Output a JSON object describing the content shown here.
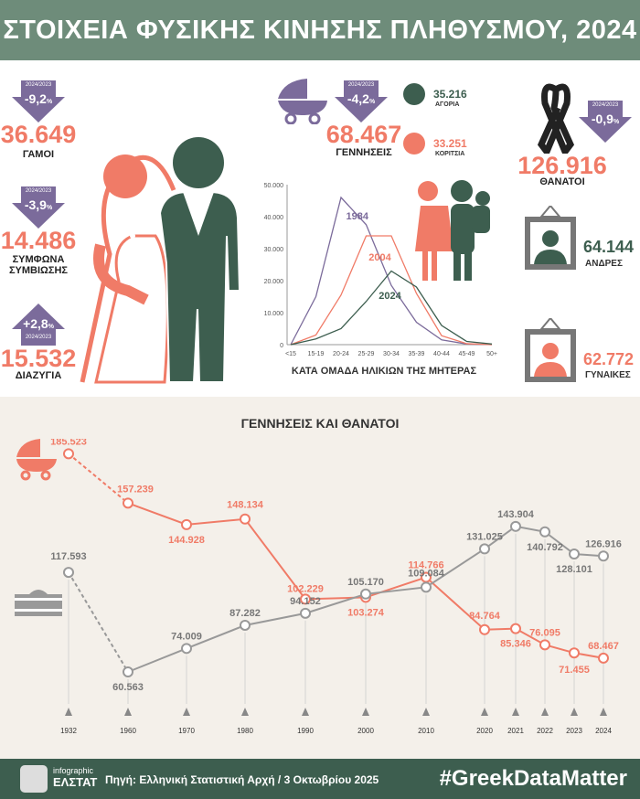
{
  "title": "ΣΤΟΙΧΕΙΑ ΦΥΣΙΚΗΣ ΚΙΝΗΣΗΣ ΠΛΗΘΥΣΜΟΥ, 2024",
  "colors": {
    "header": "#6e8c7a",
    "salmon": "#f07b67",
    "purple": "#7b6b9b",
    "dark_green": "#3d5e4f",
    "gray": "#999999"
  },
  "compare_label": "2024/2023",
  "marriages": {
    "change": "-9,2",
    "unit": "%",
    "value": "36.649",
    "label": "ΓΑΜΟΙ",
    "direction": "down"
  },
  "cohabitation": {
    "change": "-3,9",
    "unit": "%",
    "value": "14.486",
    "label1": "ΣΥΜΦΩΝΑ",
    "label2": "ΣΥΜΒΙΩΣΗΣ",
    "direction": "down"
  },
  "divorces": {
    "change": "+2,8",
    "unit": "%",
    "value": "15.532",
    "label": "ΔΙΑΖΥΓΙΑ",
    "direction": "up"
  },
  "births": {
    "change": "-4,2",
    "unit": "%",
    "value": "68.467",
    "label": "ΓΕΝΝΗΣΕΙΣ",
    "boys": "35.216",
    "boys_label": "ΑΓΟΡΙΑ",
    "girls": "33.251",
    "girls_label": "ΚΟΡΙΤΣΙΑ"
  },
  "deaths": {
    "change": "-0,9",
    "unit": "%",
    "value": "126.916",
    "label": "ΘΑΝΑΤΟΙ",
    "men": "64.144",
    "men_label": "ΑΝΔΡΕΣ",
    "women": "62.772",
    "women_label": "ΓΥΝΑΙΚΕΣ"
  },
  "chart_data": [
    {
      "type": "line",
      "xlabel": "ΚΑΤΑ ΟΜΑΔΑ ΗΛΙΚΙΩΝ ΤΗΣ ΜΗΤΕΡΑΣ",
      "ylim": [
        0,
        50000
      ],
      "yticks": [
        "0",
        "10.000",
        "20.000",
        "30.000",
        "40.000",
        "50.000"
      ],
      "categories": [
        "<15",
        "15-19",
        "20-24",
        "25-29",
        "30-34",
        "35-39",
        "40-44",
        "45-49",
        "50+"
      ],
      "series": [
        {
          "name": "1984",
          "color": "#7b6b9b",
          "values": [
            0,
            15000,
            46000,
            37500,
            18500,
            7000,
            1500,
            200,
            0
          ]
        },
        {
          "name": "2004",
          "color": "#f07b67",
          "values": [
            0,
            3000,
            15500,
            34000,
            34000,
            16000,
            2800,
            300,
            0
          ]
        },
        {
          "name": "2024",
          "color": "#3d5e4f",
          "values": [
            0,
            1800,
            5000,
            13500,
            23000,
            18000,
            6000,
            1000,
            200
          ]
        }
      ]
    },
    {
      "type": "line",
      "title": "ΓΕΝΝΗΣΕΙΣ ΚΑΙ ΘΑΝΑΤΟΙ",
      "categories": [
        "1932",
        "1960",
        "1970",
        "1980",
        "1990",
        "2000",
        "2010",
        "2020",
        "2021",
        "2022",
        "2023",
        "2024"
      ],
      "series": [
        {
          "color": "#f07b67",
          "labels": [
            "185.523",
            "157.239",
            "144.928",
            "148.134",
            "102.229",
            "103.274",
            "114.766",
            "84.764",
            "85.346",
            "76.095",
            "71.455",
            "68.467"
          ],
          "values": [
            185523,
            157239,
            144928,
            148134,
            102229,
            103274,
            114766,
            84764,
            85346,
            76095,
            71455,
            68467
          ]
        },
        {
          "color": "#999999",
          "labels": [
            "117.593",
            "60.563",
            "74.009",
            "87.282",
            "94.152",
            "105.170",
            "109.084",
            "131.025",
            "143.904",
            "140.792",
            "128.101",
            "126.916"
          ],
          "values": [
            117593,
            60563,
            74009,
            87282,
            94152,
            105170,
            109084,
            131025,
            143904,
            140792,
            128101,
            126916
          ]
        }
      ]
    }
  ],
  "footer": {
    "logo_small": "infographic",
    "logo_big": "ΕΛΣΤΑΤ",
    "source": "Πηγή: Ελληνική Στατιστική Αρχή / 3 Οκτωβρίου 2025",
    "hashtag": "#GreekDataMatter"
  }
}
